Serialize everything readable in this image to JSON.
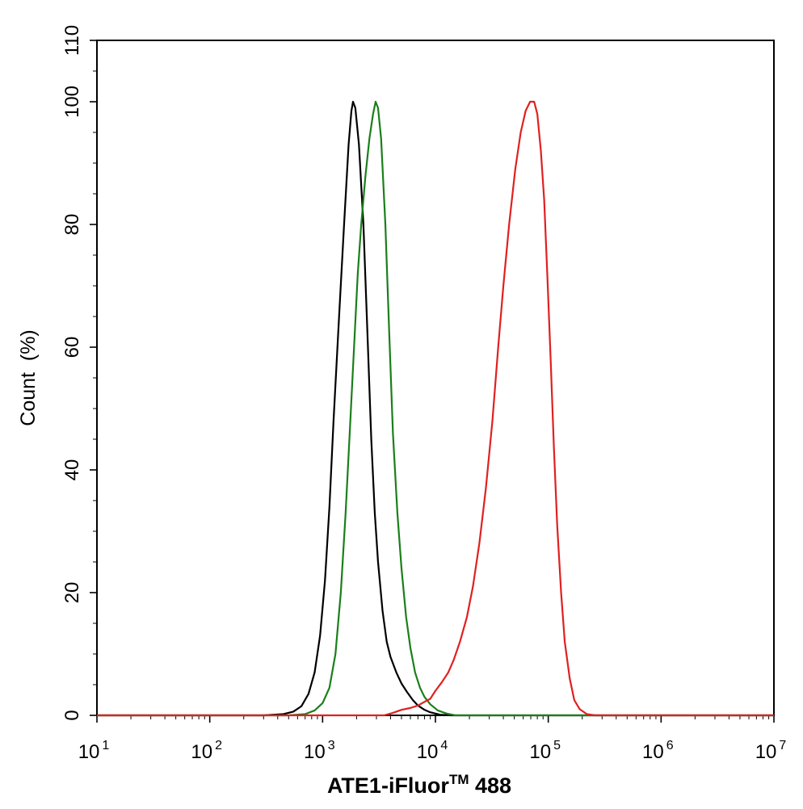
{
  "chart_data": {
    "type": "line",
    "title": "",
    "xlabel": "ATE1-iFluor",
    "xlabel_superscript": "TM",
    "xlabel_suffix": " 488",
    "ylabel": "Count  (%)",
    "x_scale": "log",
    "xlim": [
      10,
      10000000
    ],
    "ylim": [
      0,
      110
    ],
    "x_ticks": [
      {
        "base": "10",
        "exp": "1"
      },
      {
        "base": "10",
        "exp": "2"
      },
      {
        "base": "10",
        "exp": "3"
      },
      {
        "base": "10",
        "exp": "4"
      },
      {
        "base": "10",
        "exp": "5"
      },
      {
        "base": "10",
        "exp": "6"
      },
      {
        "base": "10",
        "exp": "7"
      }
    ],
    "y_ticks": [
      "0",
      "20",
      "40",
      "60",
      "80",
      "100",
      "110"
    ],
    "grid": false,
    "legend": "none",
    "series": [
      {
        "color": "#000000",
        "points": [
          [
            10,
            0
          ],
          [
            300,
            0
          ],
          [
            450,
            0.2
          ],
          [
            550,
            0.6
          ],
          [
            650,
            1.5
          ],
          [
            750,
            3.5
          ],
          [
            850,
            7
          ],
          [
            950,
            13
          ],
          [
            1050,
            22
          ],
          [
            1150,
            34
          ],
          [
            1250,
            48
          ],
          [
            1400,
            65
          ],
          [
            1550,
            80
          ],
          [
            1700,
            93
          ],
          [
            1800,
            98.5
          ],
          [
            1860,
            100
          ],
          [
            1950,
            99
          ],
          [
            2100,
            93
          ],
          [
            2300,
            80
          ],
          [
            2500,
            62
          ],
          [
            2700,
            45
          ],
          [
            2900,
            33
          ],
          [
            3100,
            25
          ],
          [
            3400,
            17
          ],
          [
            3700,
            12
          ],
          [
            4000,
            9.5
          ],
          [
            4500,
            7
          ],
          [
            5000,
            5.2
          ],
          [
            5600,
            3.8
          ],
          [
            6300,
            2.5
          ],
          [
            7000,
            1.6
          ],
          [
            8000,
            0.9
          ],
          [
            9000,
            0.5
          ],
          [
            11000,
            0.1
          ],
          [
            14000,
            0
          ],
          [
            10000000,
            0
          ]
        ]
      },
      {
        "color": "#1a7f1a",
        "points": [
          [
            10,
            0
          ],
          [
            500,
            0
          ],
          [
            700,
            0.2
          ],
          [
            850,
            0.8
          ],
          [
            1000,
            2
          ],
          [
            1150,
            4.5
          ],
          [
            1300,
            10
          ],
          [
            1450,
            20
          ],
          [
            1600,
            33
          ],
          [
            1750,
            47
          ],
          [
            1900,
            60
          ],
          [
            2050,
            72
          ],
          [
            2200,
            80
          ],
          [
            2400,
            88
          ],
          [
            2600,
            94
          ],
          [
            2800,
            98
          ],
          [
            2950,
            100
          ],
          [
            3100,
            99
          ],
          [
            3300,
            94
          ],
          [
            3600,
            80
          ],
          [
            3900,
            62
          ],
          [
            4200,
            46
          ],
          [
            4600,
            33
          ],
          [
            5000,
            24
          ],
          [
            5500,
            16
          ],
          [
            6000,
            11
          ],
          [
            6600,
            7
          ],
          [
            7300,
            4.5
          ],
          [
            8000,
            3
          ],
          [
            9000,
            1.8
          ],
          [
            10500,
            0.8
          ],
          [
            12500,
            0.3
          ],
          [
            15000,
            0
          ],
          [
            10000000,
            0
          ]
        ]
      },
      {
        "color": "#e02020",
        "points": [
          [
            10,
            0
          ],
          [
            3500,
            0
          ],
          [
            4200,
            0.4
          ],
          [
            5000,
            0.9
          ],
          [
            6000,
            1.2
          ],
          [
            7000,
            1.6
          ],
          [
            8000,
            2.2
          ],
          [
            9000,
            2.7
          ],
          [
            10000,
            4
          ],
          [
            11500,
            5.5
          ],
          [
            13000,
            7
          ],
          [
            14500,
            9
          ],
          [
            16500,
            12
          ],
          [
            19000,
            16
          ],
          [
            21500,
            21
          ],
          [
            24500,
            28
          ],
          [
            28000,
            37
          ],
          [
            32000,
            48
          ],
          [
            36000,
            60
          ],
          [
            40000,
            70
          ],
          [
            45000,
            80
          ],
          [
            51000,
            89
          ],
          [
            57000,
            95
          ],
          [
            63000,
            98.5
          ],
          [
            69000,
            100
          ],
          [
            75000,
            100
          ],
          [
            80000,
            98
          ],
          [
            86000,
            92
          ],
          [
            92000,
            84
          ],
          [
            98000,
            72
          ],
          [
            105000,
            58
          ],
          [
            112000,
            44
          ],
          [
            120000,
            31
          ],
          [
            130000,
            20
          ],
          [
            140000,
            12
          ],
          [
            155000,
            6
          ],
          [
            170000,
            2.5
          ],
          [
            190000,
            1
          ],
          [
            220000,
            0.2
          ],
          [
            260000,
            0
          ],
          [
            10000000,
            0
          ]
        ]
      }
    ]
  }
}
